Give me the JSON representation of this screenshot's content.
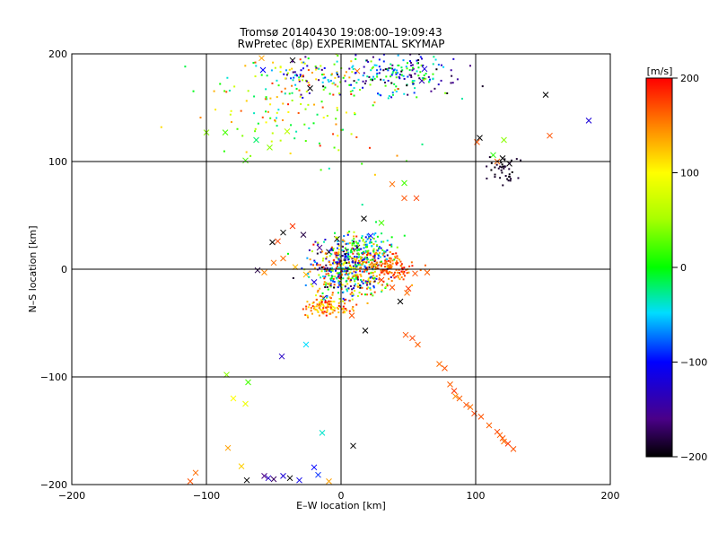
{
  "chart_data": {
    "type": "scatter",
    "title": "Tromsø 20140430 19:08:00–19:09:43",
    "subtitle": "RwPretec (8p) EXPERIMENTAL SKYMAP",
    "xlabel": "E–W location [km]",
    "ylabel": "N–S location [km]",
    "xlim": [
      -200,
      200
    ],
    "ylim": [
      -200,
      200
    ],
    "x_ticks": [
      "−200",
      "−100",
      "0",
      "100",
      "200"
    ],
    "y_ticks": [
      "−200",
      "−100",
      "0",
      "100",
      "200"
    ],
    "grid": true,
    "colorbar": {
      "label": "[m/s]",
      "range": [
        -200,
        200
      ],
      "ticks": [
        "200",
        "100",
        "0",
        "−100",
        "−200"
      ]
    },
    "points": [
      [
        -108,
        -189,
        160,
        "x"
      ],
      [
        -112,
        -197,
        170,
        "x"
      ],
      [
        -84,
        -166,
        140,
        "x"
      ],
      [
        -74,
        -183,
        120,
        "x"
      ],
      [
        -70,
        -196,
        -200,
        "x"
      ],
      [
        -57,
        -192,
        -160,
        "x"
      ],
      [
        -54,
        -194,
        -130,
        "x"
      ],
      [
        -50,
        -195,
        -170,
        "x"
      ],
      [
        -43,
        -192,
        -120,
        "x"
      ],
      [
        -38,
        -194,
        -200,
        "x"
      ],
      [
        -31,
        -196,
        -110,
        "x"
      ],
      [
        -20,
        -184,
        -100,
        "x"
      ],
      [
        -17,
        -191,
        -90,
        "x"
      ],
      [
        -9,
        -197,
        140,
        "x"
      ],
      [
        -14,
        -152,
        -40,
        "x"
      ],
      [
        9,
        -164,
        -200,
        "x"
      ],
      [
        -85,
        -98,
        40,
        "x"
      ],
      [
        -80,
        -120,
        100,
        "x"
      ],
      [
        -69,
        -105,
        20,
        "x"
      ],
      [
        -71,
        -125,
        90,
        "x"
      ],
      [
        -44,
        -81,
        -130,
        "x"
      ],
      [
        -26,
        -70,
        -50,
        "x"
      ],
      [
        48,
        -61,
        170,
        "x"
      ],
      [
        53,
        -64,
        175,
        "x"
      ],
      [
        57,
        -70,
        165,
        "x"
      ],
      [
        73,
        -88,
        160,
        "x"
      ],
      [
        77,
        -92,
        170,
        "x"
      ],
      [
        81,
        -107,
        165,
        "x"
      ],
      [
        84,
        -113,
        180,
        "x"
      ],
      [
        88,
        -120,
        165,
        "x"
      ],
      [
        93,
        -126,
        170,
        "x"
      ],
      [
        96,
        -128,
        160,
        "x"
      ],
      [
        99,
        -134,
        175,
        "x"
      ],
      [
        104,
        -137,
        170,
        "x"
      ],
      [
        110,
        -145,
        165,
        "x"
      ],
      [
        116,
        -151,
        175,
        "x"
      ],
      [
        120,
        -157,
        170,
        "x"
      ],
      [
        124,
        -162,
        180,
        "x"
      ],
      [
        128,
        -167,
        170,
        "x"
      ],
      [
        121,
        -160,
        160,
        "x"
      ],
      [
        118,
        -154,
        165,
        "x"
      ],
      [
        85,
        -118,
        150,
        "x"
      ],
      [
        18,
        -57,
        -200,
        "x"
      ],
      [
        8,
        -43,
        170,
        "x"
      ],
      [
        -13,
        -27,
        -150,
        "x"
      ],
      [
        -20,
        -12,
        -120,
        "x"
      ],
      [
        -26,
        -5,
        130,
        "x"
      ],
      [
        -34,
        2,
        130,
        "x"
      ],
      [
        -43,
        10,
        160,
        "x"
      ],
      [
        -47,
        26,
        175,
        "x"
      ],
      [
        -51,
        25,
        -200,
        "x"
      ],
      [
        -36,
        40,
        180,
        "x"
      ],
      [
        -43,
        34,
        -200,
        "x"
      ],
      [
        -28,
        32,
        -180,
        "x"
      ],
      [
        -16,
        20,
        -160,
        "x"
      ],
      [
        -62,
        -1,
        -180,
        "x"
      ],
      [
        -57,
        -3,
        150,
        "x"
      ],
      [
        -50,
        6,
        160,
        "x"
      ],
      [
        17,
        47,
        -200,
        "x"
      ],
      [
        30,
        43,
        20,
        "x"
      ],
      [
        22,
        31,
        -100,
        "x"
      ],
      [
        12,
        20,
        -190,
        "x"
      ],
      [
        4,
        12,
        -120,
        "x"
      ],
      [
        -3,
        28,
        -200,
        "x"
      ],
      [
        -9,
        16,
        -200,
        "x"
      ],
      [
        38,
        -17,
        170,
        "x"
      ],
      [
        44,
        -30,
        -200,
        "x"
      ],
      [
        50,
        -18,
        180,
        "x"
      ],
      [
        55,
        -4,
        170,
        "x"
      ],
      [
        64,
        -3,
        165,
        "x"
      ],
      [
        49,
        -22,
        160,
        "x"
      ],
      [
        30,
        -10,
        175,
        "x"
      ],
      [
        25,
        3,
        -200,
        "x"
      ],
      [
        47,
        66,
        170,
        "x"
      ],
      [
        56,
        66,
        175,
        "x"
      ],
      [
        47,
        80,
        20,
        "x"
      ],
      [
        38,
        79,
        160,
        "x"
      ],
      [
        113,
        106,
        10,
        "x"
      ],
      [
        116,
        100,
        160,
        "x"
      ],
      [
        120,
        103,
        -200,
        "x"
      ],
      [
        121,
        120,
        40,
        "x"
      ],
      [
        103,
        122,
        -200,
        "x"
      ],
      [
        101,
        118,
        170,
        "x"
      ],
      [
        125,
        98,
        -200,
        "x"
      ],
      [
        152,
        162,
        -200,
        "x"
      ],
      [
        155,
        124,
        170,
        "x"
      ],
      [
        184,
        138,
        -120,
        "x"
      ],
      [
        -100,
        127,
        40,
        "x"
      ],
      [
        -86,
        127,
        20,
        "x"
      ],
      [
        -58,
        185,
        -100,
        "x"
      ],
      [
        -36,
        194,
        -200,
        "x"
      ],
      [
        -23,
        168,
        -200,
        "x"
      ],
      [
        -53,
        113,
        40,
        "x"
      ],
      [
        -63,
        120,
        -20,
        "x"
      ],
      [
        -71,
        101,
        20,
        "x"
      ],
      [
        -40,
        128,
        60,
        "x"
      ],
      [
        12,
        184,
        160,
        "x"
      ],
      [
        -59,
        196,
        140,
        "x"
      ],
      [
        60,
        175,
        -140,
        "x"
      ],
      [
        62,
        186,
        -120,
        "x"
      ]
    ]
  }
}
